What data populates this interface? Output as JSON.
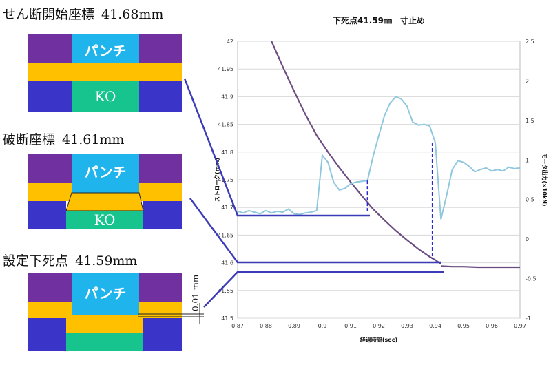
{
  "stages": [
    {
      "label": "せん断開始座標",
      "value": "41.68mm"
    },
    {
      "label": "破断座標",
      "value": "41.61mm"
    },
    {
      "label": "設定下死点",
      "value": "41.59mm"
    }
  ],
  "diagram": {
    "punch": "パンチ",
    "ko": "KO",
    "gap_label": "0.01 mm"
  },
  "colors": {
    "purple": "#7030a0",
    "blue": "#3a34c8",
    "cyan": "#1fb4ec",
    "orange": "#ffc000",
    "green": "#17c48e",
    "stroke_line": "#6b4d80",
    "motor_line": "#8fc8de",
    "connector": "#3b3bb8"
  },
  "chart_data": {
    "type": "line",
    "title": "下死点41.59㎜　寸止め",
    "xlabel": "経過時間(sec)",
    "ylabel": "ストローク(mm)",
    "y2label": "モータ出力(×10kN)",
    "xlim": [
      0.87,
      0.97
    ],
    "ylim": [
      41.5,
      42
    ],
    "y2lim": [
      -1,
      2.5
    ],
    "xticks": [
      "0.87",
      "0.88",
      "0.89",
      "0.9",
      "0.91",
      "0.92",
      "0.93",
      "0.94",
      "0.95",
      "0.96",
      "0.97"
    ],
    "yticks": [
      "41.5",
      "41.55",
      "41.6",
      "41.65",
      "41.7",
      "41.75",
      "41.8",
      "41.85",
      "41.9",
      "41.95",
      "42"
    ],
    "y2ticks": [
      "-1",
      "-0.5",
      "0",
      "0.5",
      "1",
      "1.5",
      "2",
      "2.5"
    ],
    "grid": true,
    "series": [
      {
        "axis": "left",
        "x": [
          0.882,
          0.886,
          0.89,
          0.894,
          0.898,
          0.902,
          0.906,
          0.91,
          0.914,
          0.918,
          0.922,
          0.926,
          0.93,
          0.934,
          0.938,
          0.94,
          0.942
        ],
        "y": [
          42.0,
          41.954,
          41.91,
          41.868,
          41.83,
          41.8,
          41.772,
          41.746,
          41.721,
          41.697,
          41.677,
          41.658,
          41.641,
          41.625,
          41.611,
          41.605,
          41.598
        ]
      },
      {
        "axis": "left",
        "x": [
          0.942,
          0.946,
          0.95,
          0.955,
          0.96,
          0.965,
          0.97
        ],
        "y": [
          41.594,
          41.593,
          41.593,
          41.592,
          41.592,
          41.592,
          41.592
        ]
      },
      {
        "axis": "right",
        "x": [
          0.87,
          0.872,
          0.874,
          0.876,
          0.878,
          0.88,
          0.882,
          0.884,
          0.886,
          0.888,
          0.89,
          0.892,
          0.894,
          0.896,
          0.898,
          0.9,
          0.902,
          0.904,
          0.906,
          0.908,
          0.91,
          0.912,
          0.914,
          0.916,
          0.918,
          0.92,
          0.922,
          0.924,
          0.926,
          0.928,
          0.93,
          0.932,
          0.934,
          0.936,
          0.938,
          0.94,
          0.942,
          0.944,
          0.946,
          0.948,
          0.95,
          0.952,
          0.954,
          0.956,
          0.958,
          0.96,
          0.962,
          0.964,
          0.966,
          0.968,
          0.97
        ],
        "y": [
          0.35,
          0.33,
          0.36,
          0.34,
          0.32,
          0.36,
          0.33,
          0.35,
          0.34,
          0.38,
          0.32,
          0.31,
          0.33,
          0.34,
          0.36,
          1.06,
          0.97,
          0.72,
          0.62,
          0.64,
          0.7,
          0.72,
          0.73,
          0.74,
          1.05,
          1.31,
          1.56,
          1.72,
          1.8,
          1.77,
          1.68,
          1.48,
          1.44,
          1.45,
          1.43,
          1.22,
          0.25,
          0.55,
          0.88,
          0.99,
          0.97,
          0.92,
          0.85,
          0.88,
          0.9,
          0.86,
          0.88,
          0.86,
          0.91,
          0.89,
          0.9
        ]
      }
    ],
    "markers": [
      {
        "x": 0.916,
        "y2_top": 0.74,
        "y_bottom": 41.693
      },
      {
        "x": 0.939,
        "y2_top": 1.22,
        "y_bottom": 41.607
      }
    ]
  }
}
